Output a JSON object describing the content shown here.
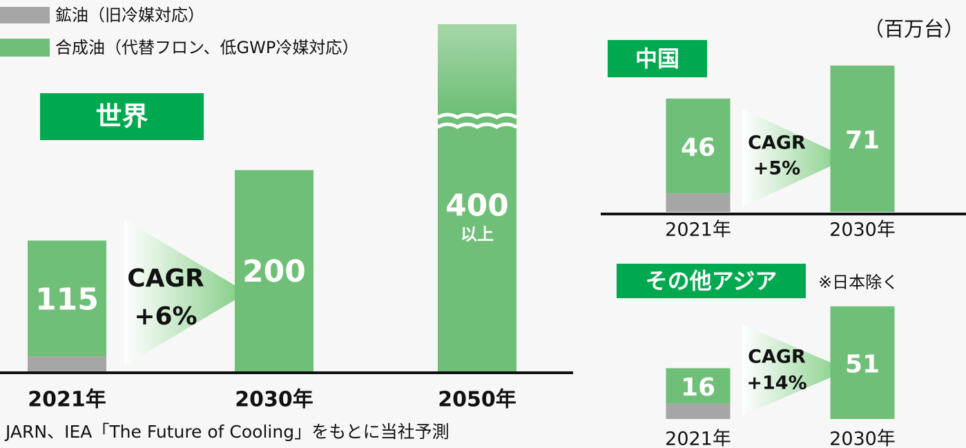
{
  "unit": "（百万台）",
  "source": "JARN、IEA「The Future of Cooling」をもとに当社予測",
  "chart_data": [
    {
      "type": "bar",
      "stacked": true,
      "title": "世界",
      "categories": [
        "2021年",
        "2030年",
        "2050年"
      ],
      "series": [
        {
          "name": "鉱油（旧冷媒対応）",
          "color": "#a6a6a6",
          "values": [
            15,
            0,
            0
          ]
        },
        {
          "name": "合成油（代替フロン、低GWP冷媒対応）",
          "color": "#70bf78",
          "values": [
            115,
            200,
            400
          ]
        }
      ],
      "ylim": [
        0,
        345
      ],
      "axis_break": true,
      "over_label": "以上",
      "annotation": {
        "label": "CAGR",
        "value": "+6%"
      }
    },
    {
      "type": "bar",
      "stacked": true,
      "title": "中国",
      "categories": [
        "2021年",
        "2030年"
      ],
      "series": [
        {
          "color": "#a6a6a6",
          "values": [
            9,
            0
          ]
        },
        {
          "color": "#70bf78",
          "values": [
            46,
            71
          ]
        }
      ],
      "ylim": [
        0,
        75
      ],
      "annotation": {
        "label": "CAGR",
        "value": "+5%"
      }
    },
    {
      "type": "bar",
      "stacked": true,
      "title": "その他アジア",
      "note": "※日本除く",
      "categories": [
        "2021年",
        "2030年"
      ],
      "series": [
        {
          "color": "#a6a6a6",
          "values": [
            7,
            0
          ]
        },
        {
          "color": "#70bf78",
          "values": [
            16,
            51
          ]
        }
      ],
      "ylim": [
        0,
        55
      ],
      "annotation": {
        "label": "CAGR",
        "value": "+14%"
      }
    }
  ]
}
